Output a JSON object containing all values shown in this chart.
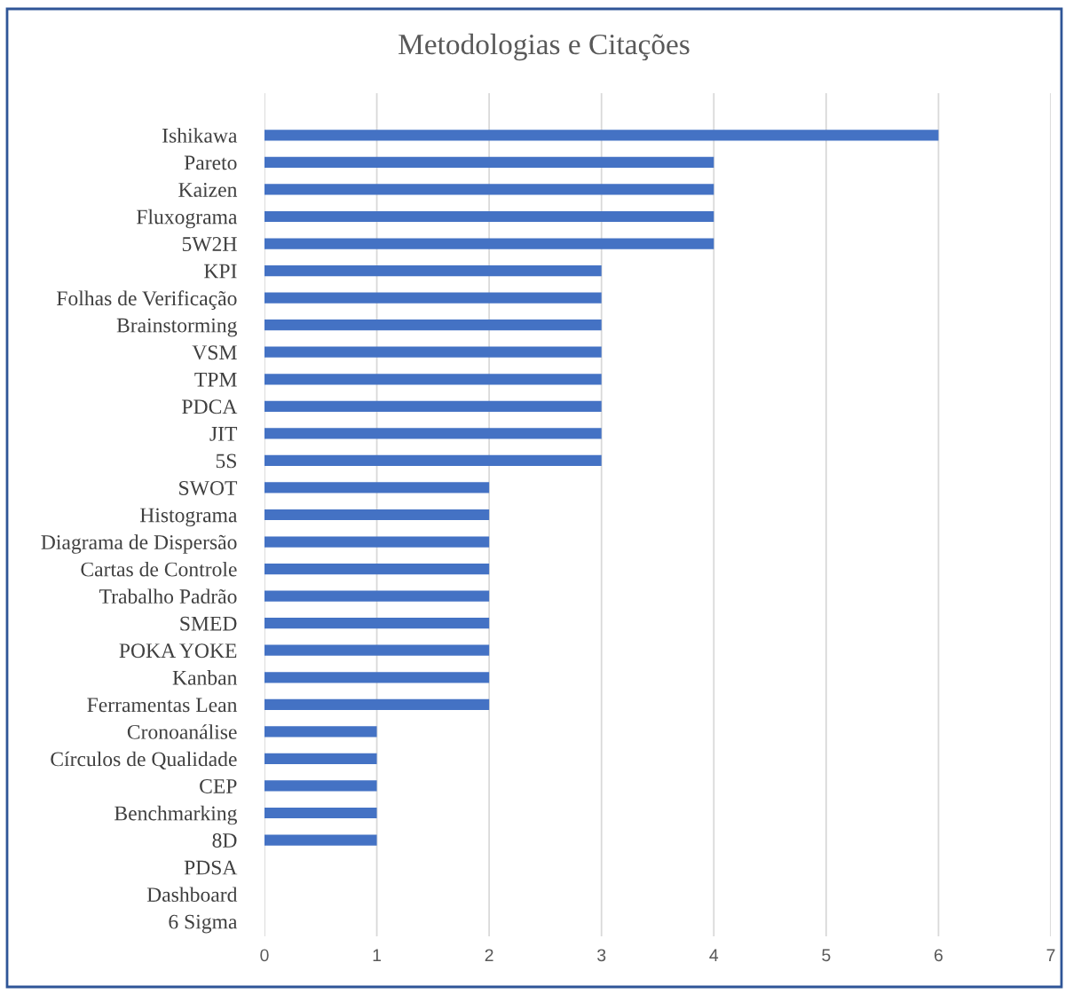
{
  "chart_data": {
    "type": "bar",
    "orientation": "horizontal",
    "title": "Metodologias e Citações",
    "categories": [
      "Ishikawa",
      "Pareto",
      "Kaizen",
      "Fluxograma",
      "5W2H",
      "KPI",
      "Folhas de Verificação",
      "Brainstorming",
      "VSM",
      "TPM",
      "PDCA",
      "JIT",
      "5S",
      "SWOT",
      "Histograma",
      "Diagrama de Dispersão",
      "Cartas de Controle",
      "Trabalho Padrão",
      "SMED",
      "POKA YOKE",
      "Kanban",
      "Ferramentas Lean",
      "Cronoanálise",
      "Círculos de Qualidade",
      "CEP",
      "Benchmarking",
      "8D",
      "PDSA",
      "Dashboard",
      "6 Sigma"
    ],
    "values": [
      6,
      4,
      4,
      4,
      4,
      3,
      3,
      3,
      3,
      3,
      3,
      3,
      3,
      2,
      2,
      2,
      2,
      2,
      2,
      2,
      2,
      2,
      1,
      1,
      1,
      1,
      1,
      0,
      0,
      0
    ],
    "color": "#4472c4",
    "xlim": [
      0,
      7
    ],
    "xticks": [
      0,
      1,
      2,
      3,
      4,
      5,
      6,
      7
    ],
    "grid": "x",
    "legend": false
  }
}
